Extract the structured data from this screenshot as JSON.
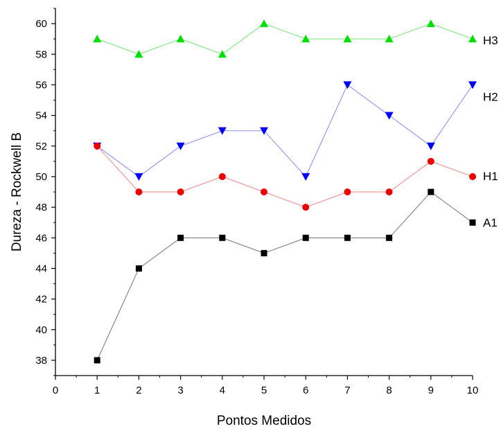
{
  "chart_data": {
    "type": "line",
    "title": "",
    "xlabel": "Pontos Medidos",
    "ylabel": "Dureza - Rockwell B",
    "xlim": [
      0,
      10
    ],
    "ylim": [
      37,
      61
    ],
    "x_ticks": [
      0,
      1,
      2,
      3,
      4,
      5,
      6,
      7,
      8,
      9,
      10
    ],
    "y_ticks": [
      38,
      40,
      42,
      44,
      46,
      48,
      50,
      52,
      54,
      56,
      58,
      60
    ],
    "grid": false,
    "legend": "inline labels at right end of each series",
    "x": [
      1,
      2,
      3,
      4,
      5,
      6,
      7,
      8,
      9,
      10
    ],
    "series": [
      {
        "name": "H3",
        "marker": "triangle-up",
        "color": "#00dd00",
        "line_color": "#88e888",
        "values": [
          59,
          58,
          59,
          58,
          60,
          59,
          59,
          59,
          60,
          59
        ]
      },
      {
        "name": "H2",
        "marker": "triangle-down",
        "color": "#0000ff",
        "line_color": "#9999ee",
        "values": [
          52,
          50,
          52,
          53,
          53,
          50,
          56,
          54,
          52,
          56
        ]
      },
      {
        "name": "H1",
        "marker": "circle",
        "color": "#ee0000",
        "line_color": "#ee9999",
        "values": [
          52,
          49,
          49,
          50,
          49,
          48,
          49,
          49,
          51,
          50
        ]
      },
      {
        "name": "A1",
        "marker": "square",
        "color": "#000000",
        "line_color": "#888888",
        "values": [
          38,
          44,
          46,
          46,
          45,
          46,
          46,
          46,
          49,
          47
        ]
      }
    ]
  }
}
